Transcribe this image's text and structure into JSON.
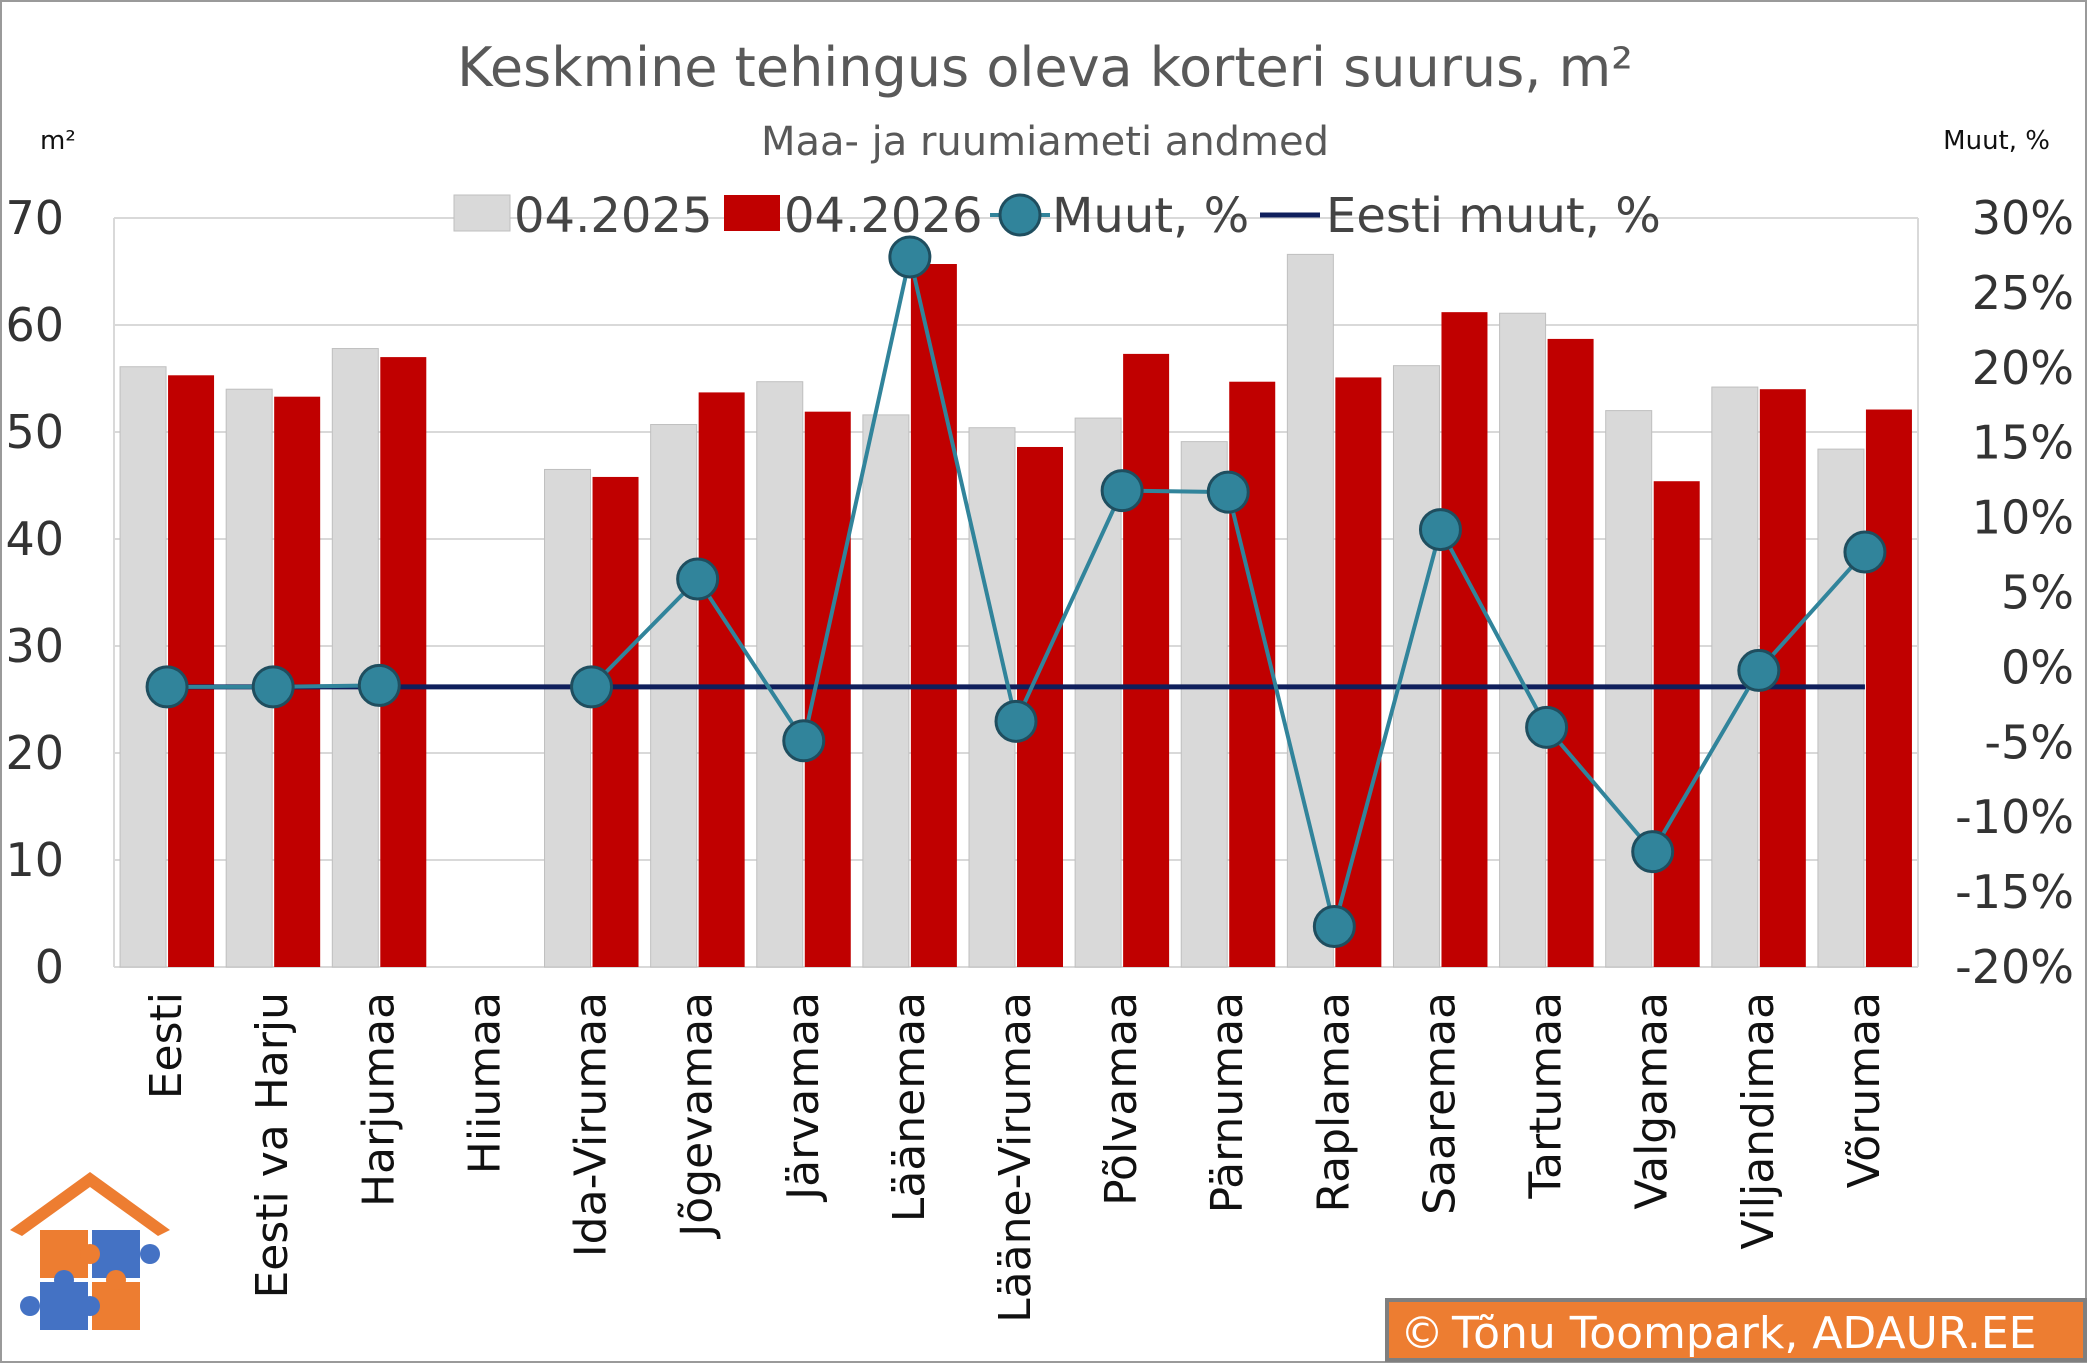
{
  "chart_data": {
    "type": "bar",
    "title": "Keskmine tehingus oleva korteri suurus, m²",
    "subtitle": "Maa- ja ruumiameti andmed",
    "ylabel": "m²",
    "y2label": "Muut, %",
    "ylim": [
      0,
      70
    ],
    "y2lim": [
      -20,
      30
    ],
    "y_ticks": [
      "0",
      "10",
      "20",
      "30",
      "40",
      "50",
      "60",
      "70"
    ],
    "y2_ticks": [
      "-20%",
      "-15%",
      "-10%",
      "-5%",
      "0%",
      "5%",
      "10%",
      "15%",
      "20%",
      "25%",
      "30%"
    ],
    "grid": true,
    "legend_position": "top",
    "categories": [
      "Eesti",
      "Eesti va Harju",
      "Harjumaa",
      "Hiiumaa",
      "Ida-Virumaa",
      "Jõgevamaa",
      "Järvamaa",
      "Läänemaa",
      "Lääne-Virumaa",
      "Põlvamaa",
      "Pärnumaa",
      "Raplamaa",
      "Saaremaa",
      "Tartumaa",
      "Valgamaa",
      "Viljandimaa",
      "Võrumaa"
    ],
    "series": [
      {
        "name": "04.2025",
        "type": "bar",
        "axis": "left",
        "color": "#d9d9d9",
        "values": [
          56.1,
          54.0,
          57.8,
          null,
          46.5,
          50.7,
          54.7,
          51.6,
          50.4,
          51.3,
          49.1,
          66.6,
          56.2,
          61.1,
          52.0,
          54.2,
          48.4
        ]
      },
      {
        "name": "04.2026",
        "type": "bar",
        "axis": "left",
        "color": "#c00000",
        "values": [
          55.3,
          53.3,
          57.0,
          null,
          45.8,
          53.7,
          51.9,
          65.7,
          48.6,
          57.3,
          54.7,
          55.1,
          61.2,
          58.7,
          45.4,
          54.0,
          52.1
        ]
      },
      {
        "name": "Muut, %",
        "type": "line",
        "axis": "right",
        "color": "#31849b",
        "values": [
          -1.3,
          -1.3,
          -1.2,
          null,
          -1.3,
          5.9,
          -4.9,
          27.4,
          -3.6,
          11.8,
          11.7,
          -17.3,
          9.2,
          -4.0,
          -12.3,
          -0.2,
          7.7
        ]
      },
      {
        "name": "Eesti muut, %",
        "type": "line",
        "axis": "right",
        "color": "#0f1f5c",
        "values": [
          -1.3,
          -1.3,
          -1.3,
          -1.3,
          -1.3,
          -1.3,
          -1.3,
          -1.3,
          -1.3,
          -1.3,
          -1.3,
          -1.3,
          -1.3,
          -1.3,
          -1.3,
          -1.3,
          -1.3
        ]
      }
    ]
  },
  "credit": {
    "symbol": "©",
    "text": "Tõnu Toompark, ADAUR.EE"
  },
  "logo": {
    "colors": [
      "#ed7d31",
      "#4472c4",
      "#ffffff"
    ]
  }
}
